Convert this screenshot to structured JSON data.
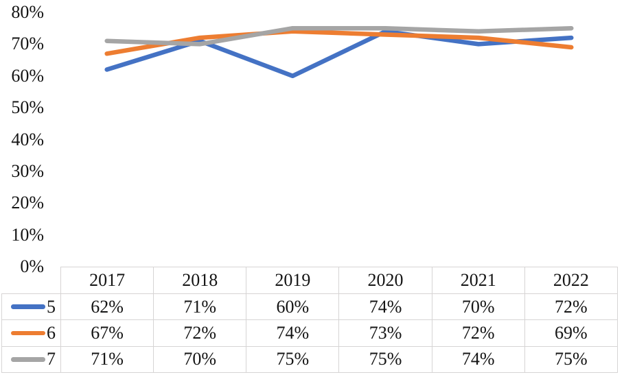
{
  "chart_data": {
    "type": "line",
    "title": "",
    "categories": [
      "2017",
      "2018",
      "2019",
      "2020",
      "2021",
      "2022"
    ],
    "series": [
      {
        "name": "5",
        "color": "#4472C4",
        "values": [
          62,
          71,
          60,
          74,
          70,
          72
        ]
      },
      {
        "name": "6",
        "color": "#ED7D31",
        "values": [
          67,
          72,
          74,
          73,
          72,
          69
        ]
      },
      {
        "name": "7",
        "color": "#A5A5A5",
        "values": [
          71,
          70,
          75,
          75,
          74,
          75
        ]
      }
    ],
    "ylim": [
      0,
      80
    ],
    "ytick_step": 10,
    "ytick_labels": [
      "0%",
      "10%",
      "20%",
      "30%",
      "40%",
      "50%",
      "60%",
      "70%",
      "80%"
    ],
    "value_suffix": "%",
    "grid": false,
    "legend_position": "table-left-column",
    "table_shown": true
  },
  "colors": {
    "background": "#FFFFFF",
    "text": "#141414",
    "table_border": "#D6D4D4"
  }
}
